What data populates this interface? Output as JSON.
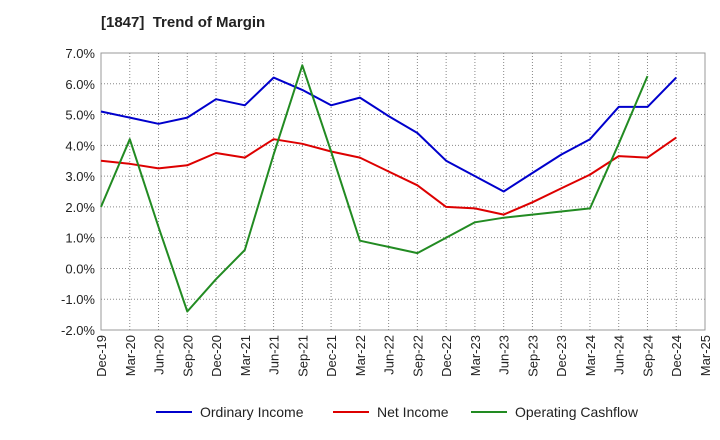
{
  "chart_data": {
    "type": "line",
    "title": "[1847]  Trend of Margin",
    "xlabel": "",
    "ylabel": "",
    "categories": [
      "Dec-19",
      "Mar-20",
      "Jun-20",
      "Sep-20",
      "Dec-20",
      "Mar-21",
      "Jun-21",
      "Sep-21",
      "Dec-21",
      "Mar-22",
      "Jun-22",
      "Sep-22",
      "Dec-22",
      "Mar-23",
      "Jun-23",
      "Sep-23",
      "Dec-23",
      "Mar-24",
      "Jun-24",
      "Sep-24",
      "Dec-24",
      "Mar-25"
    ],
    "ylim": [
      -2.0,
      7.0
    ],
    "yticks": [
      "7.0%",
      "6.0%",
      "5.0%",
      "4.0%",
      "3.0%",
      "2.0%",
      "1.0%",
      "0.0%",
      "-1.0%",
      "-2.0%"
    ],
    "ytick_values": [
      7,
      6,
      5,
      4,
      3,
      2,
      1,
      0,
      -1,
      -2
    ],
    "grid": true,
    "legend_position": "bottom",
    "series": [
      {
        "name": "Ordinary Income",
        "color": "#0000cc",
        "values": [
          5.1,
          4.9,
          4.7,
          4.9,
          5.5,
          5.3,
          6.2,
          5.8,
          5.3,
          5.55,
          4.95,
          4.4,
          3.5,
          3.0,
          2.5,
          3.1,
          3.7,
          4.2,
          5.25,
          5.25,
          6.2,
          null
        ]
      },
      {
        "name": "Net Income",
        "color": "#dd0000",
        "values": [
          3.5,
          3.4,
          3.25,
          3.35,
          3.75,
          3.6,
          4.2,
          4.05,
          3.8,
          3.6,
          3.15,
          2.7,
          2.0,
          1.95,
          1.75,
          2.15,
          2.6,
          3.05,
          3.65,
          3.6,
          4.25,
          null
        ]
      },
      {
        "name": "Operating Cashflow",
        "color": "#228b22",
        "values": [
          2.0,
          4.2,
          1.35,
          -1.4,
          -0.35,
          0.6,
          3.7,
          6.6,
          3.8,
          0.9,
          0.7,
          0.5,
          1.0,
          1.5,
          1.65,
          1.75,
          1.85,
          1.95,
          4.05,
          6.25,
          null,
          null
        ]
      }
    ]
  }
}
